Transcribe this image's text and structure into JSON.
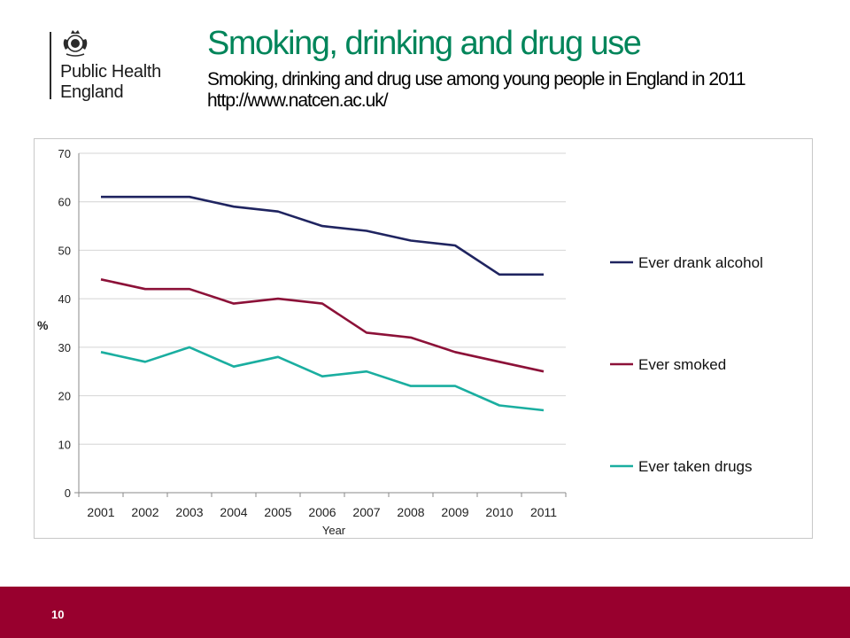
{
  "logo": {
    "line1": "Public Health",
    "line2": "England",
    "emblem": "royal-crest-icon"
  },
  "slide": {
    "title": "Smoking, drinking and drug use",
    "subtitle": "Smoking, drinking and drug use among young people in England in 2011",
    "source_url": "http://www.natcen.ac.uk/",
    "page_number": "10"
  },
  "colors": {
    "title": "#00855a",
    "footer": "#98002e",
    "alcohol": "#1f2460",
    "smoked": "#8c1138",
    "drugs": "#1aaea0"
  },
  "chart_data": {
    "type": "line",
    "title": "",
    "xlabel": "Year",
    "ylabel": "%",
    "x": [
      "2001",
      "2002",
      "2003",
      "2004",
      "2005",
      "2006",
      "2007",
      "2008",
      "2009",
      "2010",
      "2011"
    ],
    "ylim": [
      0,
      70
    ],
    "yticks": [
      0,
      10,
      20,
      30,
      40,
      50,
      60,
      70
    ],
    "grid": true,
    "legend_position": "right",
    "series": [
      {
        "name": "Ever drank alcohol",
        "color": "#1f2460",
        "values": [
          61,
          61,
          61,
          59,
          58,
          55,
          54,
          52,
          51,
          45,
          45
        ]
      },
      {
        "name": "Ever smoked",
        "color": "#8c1138",
        "values": [
          44,
          42,
          42,
          39,
          40,
          39,
          33,
          32,
          29,
          27,
          25
        ]
      },
      {
        "name": "Ever taken drugs",
        "color": "#1aaea0",
        "values": [
          29,
          27,
          30,
          26,
          28,
          24,
          25,
          22,
          22,
          18,
          17
        ]
      }
    ]
  }
}
